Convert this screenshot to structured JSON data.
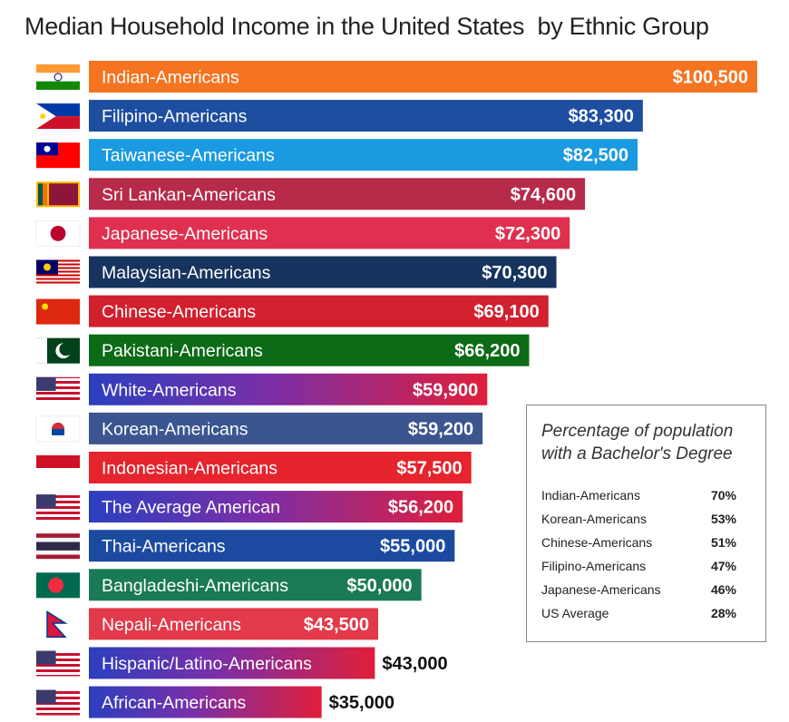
{
  "title": "Median Household Income in the United States  by Ethnic Group",
  "chart_data": {
    "type": "bar",
    "orientation": "horizontal",
    "title": "Median Household Income in the United States  by Ethnic Group",
    "categories": [
      "Indian-Americans",
      "Filipino-Americans",
      "Taiwanese-Americans",
      "Sri Lankan-Americans",
      "Japanese-Americans",
      "Malaysian-Americans",
      "Chinese-Americans",
      "Pakistani-Americans",
      "White-Americans",
      "Korean-Americans",
      "Indonesian-Americans",
      "The Average American",
      "Thai-Americans",
      "Bangladeshi-Americans",
      "Nepali-Americans",
      "Hispanic/Latino-Americans",
      "African-Americans"
    ],
    "values": [
      100500,
      83300,
      82500,
      74600,
      72300,
      70300,
      69100,
      66200,
      59900,
      59200,
      57500,
      56200,
      55000,
      50000,
      43500,
      43000,
      35000
    ],
    "value_labels": [
      "$100,500",
      "$83,300",
      "$82,500",
      "$74,600",
      "$72,300",
      "$70,300",
      "$69,100",
      "$66,200",
      "$59,900",
      "$59,200",
      "$57,500",
      "$56,200",
      "$55,000",
      "$50,000",
      "$43,500",
      "$43,000",
      "$35,000"
    ],
    "bar_colors": [
      "#f47421",
      "#1d4ea0",
      "#1a9ae0",
      "#b72a4a",
      "#e0304f",
      "#17345f",
      "#d2202e",
      "#0b6b16",
      [
        "#2b3fbf",
        "#e01e3a"
      ],
      "#3a5590",
      "#e5242d",
      [
        "#2b3fbf",
        "#e01e3a"
      ],
      "#1b4aa0",
      "#1a7a55",
      "#e23a4a",
      [
        "#2b3fbf",
        "#e01e3a"
      ],
      [
        "#2b3fbf",
        "#e01e3a"
      ]
    ],
    "flags": [
      "india-flag-icon",
      "philippines-flag-icon",
      "taiwan-flag-icon",
      "sri-lanka-flag-icon",
      "japan-flag-icon",
      "malaysia-flag-icon",
      "china-flag-icon",
      "pakistan-flag-icon",
      "usa-flag-icon",
      "south-korea-flag-icon",
      "indonesia-flag-icon",
      "usa-flag-icon",
      "thailand-flag-icon",
      "bangladesh-flag-icon",
      "nepal-flag-icon",
      "usa-flag-icon",
      "usa-flag-icon"
    ]
  },
  "inset": {
    "title": "Percentage of population with a Bachelor's Degree",
    "rows": [
      {
        "name": "Indian-Americans",
        "pct": "70%"
      },
      {
        "name": "Korean-Americans",
        "pct": "53%"
      },
      {
        "name": "Chinese-Americans",
        "pct": "51%"
      },
      {
        "name": "Filipino-Americans",
        "pct": "47%"
      },
      {
        "name": "Japanese-Americans",
        "pct": "46%"
      },
      {
        "name": "US Average",
        "pct": "28%"
      }
    ]
  }
}
